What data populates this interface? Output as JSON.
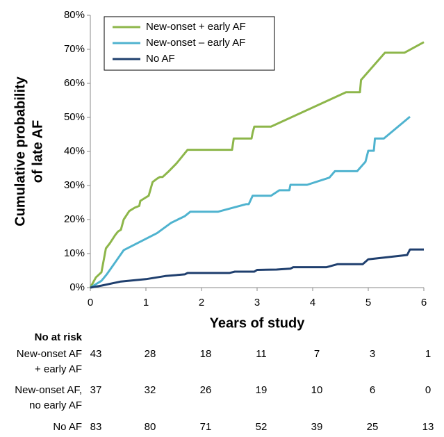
{
  "chart_data": {
    "type": "line",
    "ylabel": [
      "Cumulative probability",
      "of late AF"
    ],
    "xlabel": "Years of study",
    "xlim": [
      0,
      6
    ],
    "xticks": [
      0,
      1,
      2,
      3,
      4,
      5,
      6
    ],
    "ylim": [
      0,
      80
    ],
    "yticks": [
      {
        "value": 0,
        "label": "0%"
      },
      {
        "value": 10,
        "label": "10%"
      },
      {
        "value": 20,
        "label": "20%"
      },
      {
        "value": 30,
        "label": "30%"
      },
      {
        "value": 40,
        "label": "40%"
      },
      {
        "value": 50,
        "label": "50%"
      },
      {
        "value": 60,
        "label": "60%"
      },
      {
        "value": 70,
        "label": "70%"
      },
      {
        "value": 80,
        "label": "80%"
      }
    ],
    "legend": "top-left",
    "series": [
      {
        "name": "New-onset + early AF",
        "color": "#8db64a",
        "x": [
          0,
          0.05,
          0.1,
          0.2,
          0.28,
          0.35,
          0.45,
          0.5,
          0.55,
          0.6,
          0.7,
          0.8,
          0.88,
          0.9,
          1.0,
          1.05,
          1.12,
          1.2,
          1.25,
          1.3,
          1.4,
          1.55,
          1.6,
          1.75,
          2.55,
          2.58,
          2.9,
          2.92,
          2.95,
          3.25,
          4.6,
          4.85,
          4.87,
          5.3,
          5.65,
          6
        ],
        "values": [
          0,
          1.5,
          3,
          4.5,
          11.5,
          13,
          15.5,
          16.5,
          17,
          20,
          22.5,
          23.5,
          24,
          25.5,
          26.5,
          27,
          31,
          32,
          32.5,
          32.5,
          34,
          36.5,
          37.5,
          40.5,
          40.5,
          43.8,
          43.8,
          45.5,
          47.3,
          47.3,
          57.4,
          57.4,
          61,
          69,
          69,
          72.1
        ]
      },
      {
        "name": "New-onset – early AF",
        "color": "#4fb3cf",
        "x": [
          0,
          0.2,
          0.3,
          0.45,
          0.6,
          1.2,
          1.45,
          1.7,
          1.8,
          2.3,
          2.8,
          2.85,
          2.92,
          3.25,
          3.4,
          3.58,
          3.6,
          3.9,
          4.3,
          4.4,
          4.8,
          4.95,
          5.0,
          5.1,
          5.12,
          5.28,
          5.75
        ],
        "values": [
          0,
          2,
          4,
          7.5,
          11,
          16,
          19,
          21,
          22.3,
          22.3,
          24.5,
          24.5,
          27,
          27,
          28.6,
          28.6,
          30.2,
          30.2,
          32.3,
          34.2,
          34.2,
          37,
          40.2,
          40.2,
          43.8,
          43.8,
          50.2
        ]
      },
      {
        "name": "No AF",
        "color": "#1f3f6e",
        "x": [
          0,
          0.2,
          0.55,
          1.0,
          1.35,
          1.7,
          1.75,
          2.5,
          2.6,
          2.95,
          3.0,
          3.35,
          3.6,
          3.65,
          4.25,
          4.45,
          4.9,
          5.0,
          5.55,
          5.7,
          5.75,
          6
        ],
        "values": [
          0,
          0.6,
          1.8,
          2.5,
          3.4,
          3.9,
          4.3,
          4.3,
          4.7,
          4.7,
          5.2,
          5.3,
          5.6,
          6.0,
          6.0,
          6.9,
          6.9,
          8.3,
          9.3,
          9.6,
          11.2,
          11.2
        ]
      }
    ]
  },
  "risk_table": {
    "title": "No at risk",
    "rows": [
      {
        "label": [
          "New-onset AF",
          "+ early AF"
        ],
        "counts": [
          43,
          28,
          18,
          11,
          7,
          3,
          1
        ]
      },
      {
        "label": [
          "New-onset AF,",
          "no early AF"
        ],
        "counts": [
          37,
          32,
          26,
          19,
          10,
          6,
          0
        ]
      },
      {
        "label": [
          "No AF"
        ],
        "counts": [
          83,
          80,
          71,
          52,
          39,
          25,
          13
        ]
      }
    ]
  }
}
